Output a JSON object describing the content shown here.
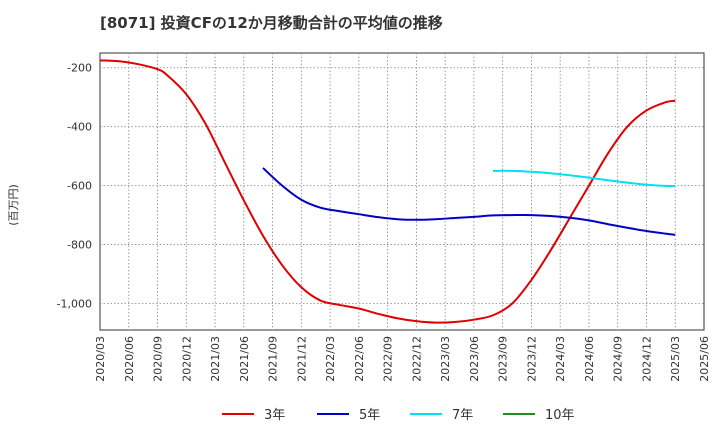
{
  "chart_data": {
    "type": "line",
    "title": "[8071]  投資CFの12か月移動合計の平均値の推移",
    "ylabel": "(百万円)",
    "xlabel": "",
    "ylim": [
      -1090,
      -150
    ],
    "yticks": [
      -200,
      -400,
      -600,
      -800,
      -1000
    ],
    "ytick_labels": [
      "-200",
      "-400",
      "-600",
      "-800",
      "-1,000"
    ],
    "x_categories": [
      "2020/03",
      "2020/06",
      "2020/09",
      "2020/12",
      "2021/03",
      "2021/06",
      "2021/09",
      "2021/12",
      "2022/03",
      "2022/06",
      "2022/09",
      "2022/12",
      "2023/03",
      "2023/06",
      "2023/09",
      "2023/12",
      "2024/03",
      "2024/06",
      "2024/09",
      "2024/12",
      "2025/03",
      "2025/06"
    ],
    "grid": true,
    "legend_position": "bottom",
    "series": [
      {
        "name": "3年",
        "color": "#e00000",
        "points": [
          [
            "2020/03",
            -175
          ],
          [
            "2020/05",
            -178
          ],
          [
            "2020/07",
            -188
          ],
          [
            "2020/09",
            -205
          ],
          [
            "2020/10",
            -225
          ],
          [
            "2020/12",
            -290
          ],
          [
            "2021/02",
            -390
          ],
          [
            "2021/04",
            -520
          ],
          [
            "2021/06",
            -650
          ],
          [
            "2021/08",
            -770
          ],
          [
            "2021/10",
            -870
          ],
          [
            "2021/12",
            -945
          ],
          [
            "2022/02",
            -990
          ],
          [
            "2022/04",
            -1005
          ],
          [
            "2022/06",
            -1017
          ],
          [
            "2022/08",
            -1035
          ],
          [
            "2022/10",
            -1050
          ],
          [
            "2022/12",
            -1060
          ],
          [
            "2023/02",
            -1065
          ],
          [
            "2023/04",
            -1063
          ],
          [
            "2023/06",
            -1055
          ],
          [
            "2023/08",
            -1040
          ],
          [
            "2023/10",
            -1000
          ],
          [
            "2023/12",
            -920
          ],
          [
            "2024/02",
            -820
          ],
          [
            "2024/04",
            -710
          ],
          [
            "2024/06",
            -600
          ],
          [
            "2024/08",
            -490
          ],
          [
            "2024/10",
            -400
          ],
          [
            "2024/12",
            -345
          ],
          [
            "2025/02",
            -317
          ],
          [
            "2025/03",
            -312
          ]
        ]
      },
      {
        "name": "5年",
        "color": "#0000c8",
        "points": [
          [
            "2021/08",
            -540
          ],
          [
            "2021/10",
            -600
          ],
          [
            "2021/12",
            -648
          ],
          [
            "2022/02",
            -675
          ],
          [
            "2022/04",
            -687
          ],
          [
            "2022/06",
            -697
          ],
          [
            "2022/08",
            -707
          ],
          [
            "2022/10",
            -714
          ],
          [
            "2022/12",
            -716
          ],
          [
            "2023/02",
            -714
          ],
          [
            "2023/04",
            -710
          ],
          [
            "2023/06",
            -706
          ],
          [
            "2023/08",
            -701
          ],
          [
            "2023/10",
            -700
          ],
          [
            "2023/12",
            -700
          ],
          [
            "2024/02",
            -703
          ],
          [
            "2024/04",
            -709
          ],
          [
            "2024/06",
            -718
          ],
          [
            "2024/08",
            -731
          ],
          [
            "2024/10",
            -743
          ],
          [
            "2024/12",
            -754
          ],
          [
            "2025/02",
            -763
          ],
          [
            "2025/03",
            -767
          ]
        ]
      },
      {
        "name": "7年",
        "color": "#00e0f0",
        "points": [
          [
            "2023/08",
            -550
          ],
          [
            "2023/10",
            -550
          ],
          [
            "2023/12",
            -553
          ],
          [
            "2024/02",
            -558
          ],
          [
            "2024/04",
            -565
          ],
          [
            "2024/06",
            -573
          ],
          [
            "2024/08",
            -582
          ],
          [
            "2024/10",
            -590
          ],
          [
            "2024/12",
            -597
          ],
          [
            "2025/02",
            -601
          ],
          [
            "2025/03",
            -602
          ]
        ]
      },
      {
        "name": "10年",
        "color": "#228b22",
        "points": []
      }
    ]
  }
}
